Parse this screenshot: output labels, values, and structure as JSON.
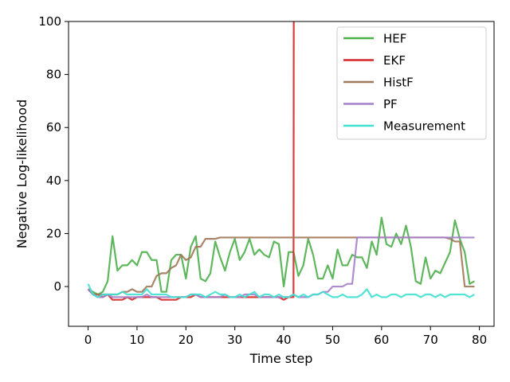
{
  "chart_data": {
    "type": "line",
    "title": "",
    "xlabel": "Time step",
    "ylabel": "Negative Log-likelihood",
    "xlim": [
      -4,
      83
    ],
    "ylim": [
      -15,
      100
    ],
    "xticks": [
      0,
      10,
      20,
      30,
      40,
      50,
      60,
      70,
      80
    ],
    "yticks": [
      0,
      20,
      40,
      60,
      80,
      100
    ],
    "grid": false,
    "legend_position": "top-right",
    "series": [
      {
        "name": "HEF",
        "color": "#4daf4a",
        "x": [
          0,
          1,
          2,
          3,
          4,
          5,
          6,
          7,
          8,
          9,
          10,
          11,
          12,
          13,
          14,
          15,
          16,
          17,
          18,
          19,
          20,
          21,
          22,
          23,
          24,
          25,
          26,
          27,
          28,
          29,
          30,
          31,
          32,
          33,
          34,
          35,
          36,
          37,
          38,
          39,
          40,
          41,
          42,
          43,
          44,
          45,
          46,
          47,
          48,
          49,
          50,
          51,
          52,
          53,
          54,
          55,
          56,
          57,
          58,
          59,
          60,
          61,
          62,
          63,
          64,
          65,
          66,
          67,
          68,
          69,
          70,
          71,
          72,
          73,
          74,
          75,
          76,
          77,
          78,
          79
        ],
        "y": [
          -1,
          -2,
          -3,
          -2,
          2,
          19,
          6,
          8,
          8,
          10,
          8,
          13,
          13,
          10,
          10,
          -2,
          -2,
          10,
          12,
          12,
          3,
          15,
          19,
          3,
          2,
          5,
          17,
          11,
          6,
          13,
          18,
          10,
          13,
          18,
          12,
          14,
          12,
          11,
          17,
          16,
          0,
          13,
          13,
          4,
          8,
          18,
          12,
          3,
          3,
          8,
          3,
          14,
          8,
          8,
          12,
          11,
          11,
          7,
          17,
          12,
          26,
          16,
          15,
          20,
          16,
          23,
          15,
          2,
          1,
          11,
          3,
          6,
          5,
          9,
          13,
          25,
          18,
          13,
          1,
          2
        ]
      },
      {
        "name": "EKF",
        "color": "#d62728",
        "x": [
          0,
          1,
          2,
          3,
          4,
          5,
          6,
          7,
          8,
          9,
          10,
          11,
          12,
          13,
          14,
          15,
          16,
          17,
          18,
          19,
          20,
          21,
          22,
          23,
          24,
          25,
          26,
          27,
          28,
          29,
          30,
          31,
          32,
          33,
          34,
          35,
          36,
          37,
          38,
          39,
          40,
          41,
          42,
          42.05
        ],
        "y": [
          -1,
          -3,
          -3,
          -4,
          -3,
          -5,
          -5,
          -5,
          -4,
          -5,
          -4,
          -4,
          -4,
          -4,
          -4,
          -5,
          -5,
          -5,
          -5,
          -4,
          -4,
          -4,
          -3,
          -4,
          -4,
          -4,
          -4,
          -4,
          -4,
          -4,
          -4,
          -4,
          -4,
          -4,
          -4,
          -4,
          -4,
          -4,
          -4,
          -4,
          -5,
          -4,
          -4,
          100
        ]
      },
      {
        "name": "HistF",
        "color": "#a0785a",
        "x": [
          0,
          1,
          2,
          3,
          4,
          5,
          6,
          7,
          8,
          9,
          10,
          11,
          12,
          13,
          14,
          15,
          16,
          17,
          18,
          19,
          20,
          21,
          22,
          23,
          24,
          25,
          26,
          27,
          28,
          29,
          30,
          31,
          32,
          33,
          34,
          35,
          36,
          37,
          38,
          39,
          40,
          41,
          42,
          43,
          44,
          45,
          46,
          47,
          48,
          49,
          50,
          51,
          52,
          53,
          54,
          55,
          56,
          57,
          58,
          59,
          60,
          61,
          62,
          63,
          64,
          65,
          66,
          67,
          68,
          69,
          70,
          71,
          72,
          73,
          74,
          75,
          76,
          77,
          78,
          79
        ],
        "y": [
          -1,
          -3,
          -3,
          -3,
          -3,
          -3,
          -3,
          -2,
          -2,
          -1,
          -2,
          -2,
          0,
          0,
          4,
          5,
          5,
          7,
          8,
          12,
          10,
          11,
          15,
          15,
          18,
          18,
          18,
          18.5,
          18.5,
          18.5,
          18.5,
          18.5,
          18.5,
          18.5,
          18.5,
          18.5,
          18.5,
          18.5,
          18.5,
          18.5,
          18.5,
          18.5,
          18.5,
          18.5,
          18.5,
          18.5,
          18.5,
          18.5,
          18.5,
          18.5,
          18.5,
          18.5,
          18.5,
          18.5,
          18.5,
          18.5,
          18.5,
          18.5,
          18.5,
          18.5,
          18.5,
          18.5,
          18.5,
          18.5,
          18.5,
          18.5,
          18.5,
          18.5,
          18.5,
          18.5,
          18.5,
          18.5,
          18.5,
          18.5,
          18,
          17,
          17,
          0,
          0,
          0
        ]
      },
      {
        "name": "PF",
        "color": "#a57fc9",
        "x": [
          0,
          1,
          2,
          3,
          4,
          5,
          6,
          7,
          8,
          9,
          10,
          11,
          12,
          13,
          14,
          15,
          16,
          17,
          18,
          19,
          20,
          21,
          22,
          23,
          24,
          25,
          26,
          27,
          28,
          29,
          30,
          31,
          32,
          33,
          34,
          35,
          36,
          37,
          38,
          39,
          40,
          41,
          42,
          43,
          44,
          45,
          46,
          47,
          48,
          49,
          50,
          51,
          52,
          53,
          54,
          55,
          56,
          57,
          58,
          59,
          60,
          61,
          62,
          63,
          64,
          65,
          66,
          67,
          68,
          69,
          70,
          71,
          72,
          73,
          74,
          75,
          76,
          77,
          78,
          79
        ],
        "y": [
          -1,
          -3,
          -4,
          -4,
          -3,
          -4,
          -4,
          -4,
          -4,
          -4,
          -4,
          -4,
          -3,
          -4,
          -4,
          -4,
          -4,
          -4,
          -4,
          -4,
          -4,
          -3,
          -3,
          -4,
          -4,
          -4,
          -4,
          -4,
          -3,
          -4,
          -4,
          -4,
          -3,
          -3,
          -3,
          -4,
          -4,
          -4,
          -4,
          -4,
          -4,
          -4,
          -3,
          -4,
          -4,
          -4,
          -3,
          -3,
          -2,
          -2,
          0,
          0,
          0,
          1,
          1,
          18.5,
          18.5,
          18.5,
          18.5,
          18.5,
          18.5,
          18.5,
          18.5,
          18.5,
          18.5,
          18.5,
          18.5,
          18.5,
          18.5,
          18.5,
          18.5,
          18.5,
          18.5,
          18.5,
          18.5,
          18.5,
          18.5,
          18.5,
          18.5,
          18.5
        ]
      },
      {
        "name": "Measurement",
        "color": "#40e0d0",
        "x": [
          0,
          1,
          2,
          3,
          4,
          5,
          6,
          7,
          8,
          9,
          10,
          11,
          12,
          13,
          14,
          15,
          16,
          17,
          18,
          19,
          20,
          21,
          22,
          23,
          24,
          25,
          26,
          27,
          28,
          29,
          30,
          31,
          32,
          33,
          34,
          35,
          36,
          37,
          38,
          39,
          40,
          41,
          42,
          43,
          44,
          45,
          46,
          47,
          48,
          49,
          50,
          51,
          52,
          53,
          54,
          55,
          56,
          57,
          58,
          59,
          60,
          61,
          62,
          63,
          64,
          65,
          66,
          67,
          68,
          69,
          70,
          71,
          72,
          73,
          74,
          75,
          76,
          77,
          78,
          79
        ],
        "y": [
          1,
          -3,
          -4,
          -3,
          -3,
          -3,
          -3,
          -2,
          -3,
          -3,
          -3,
          -3,
          -1,
          -3,
          -3,
          -3,
          -3,
          -4,
          -4,
          -4,
          -4,
          -3,
          -3,
          -3,
          -4,
          -3,
          -2,
          -3,
          -3,
          -4,
          -4,
          -3,
          -4,
          -3,
          -2,
          -4,
          -3,
          -3,
          -4,
          -3,
          -4,
          -4,
          -3,
          -4,
          -3,
          -4,
          -3,
          -3,
          -2,
          -3,
          -4,
          -4,
          -3,
          -4,
          -4,
          -4,
          -3,
          -1,
          -4,
          -3,
          -4,
          -4,
          -3,
          -3,
          -4,
          -3,
          -3,
          -3,
          -4,
          -3,
          -3,
          -4,
          -3,
          -4,
          -3,
          -3,
          -3,
          -3,
          -4,
          -3
        ]
      }
    ]
  }
}
